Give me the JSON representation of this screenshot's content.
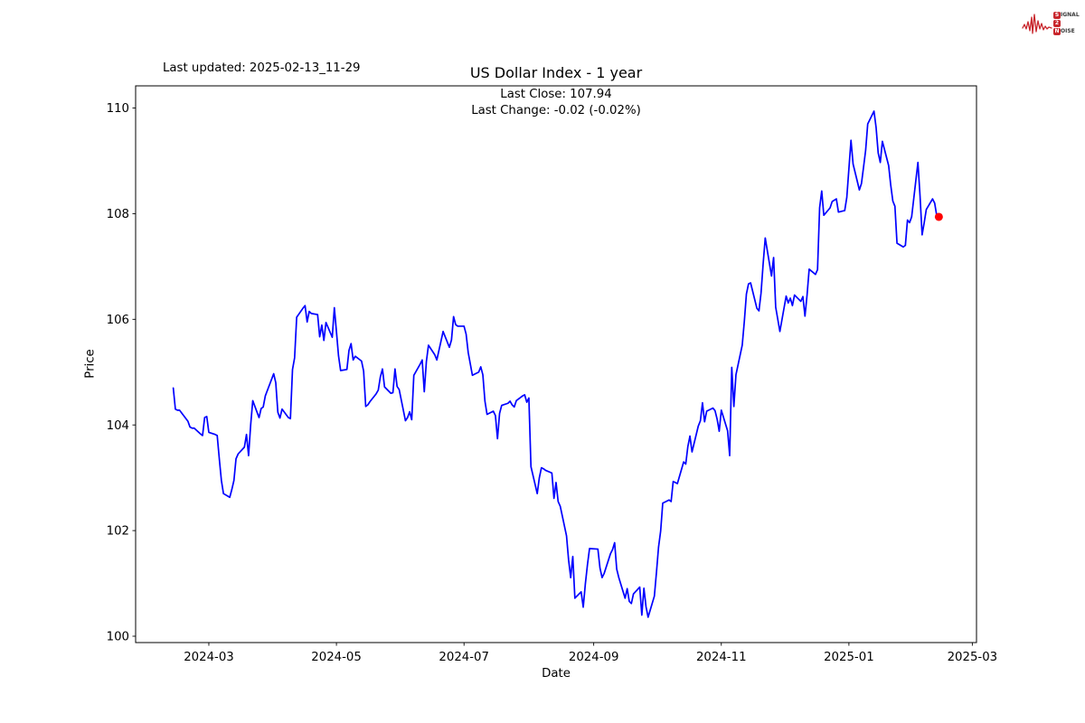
{
  "header": {
    "last_updated": "Last updated: 2025-02-13_11-29",
    "title": "US Dollar Index - 1 year",
    "subtitle_line1": "Last Close: 107.94",
    "subtitle_line2": "Last Change: -0.02 (-0.02%)"
  },
  "logo": {
    "color": "#c8262c",
    "row1_box": "S",
    "row1_rest": "IGNAL",
    "row2_box": "2",
    "row2_rest": "",
    "row3_box": "N",
    "row3_rest": "OISE"
  },
  "chart_data": {
    "type": "line",
    "title": "US Dollar Index - 1 year",
    "xlabel": "Date",
    "ylabel": "Price",
    "line_color": "#0000ff",
    "last_point_color": "#ff0000",
    "axis_color": "#000000",
    "grid": false,
    "ylim": [
      99.88,
      110.42
    ],
    "x_domain": [
      "2024-01-26",
      "2025-03-03"
    ],
    "y_ticks": [
      100,
      102,
      104,
      106,
      108,
      110
    ],
    "x_ticks": [
      {
        "label": "2024-03",
        "date": "2024-03-01"
      },
      {
        "label": "2024-05",
        "date": "2024-05-01"
      },
      {
        "label": "2024-07",
        "date": "2024-07-01"
      },
      {
        "label": "2024-09",
        "date": "2024-09-01"
      },
      {
        "label": "2024-11",
        "date": "2024-11-01"
      },
      {
        "label": "2025-01",
        "date": "2025-01-01"
      },
      {
        "label": "2025-03",
        "date": "2025-03-01"
      }
    ],
    "last_close": 107.94,
    "last_change": "-0.02 (-0.02%)",
    "dates": [
      "2024-02-13",
      "2024-02-14",
      "2024-02-15",
      "2024-02-16",
      "2024-02-20",
      "2024-02-21",
      "2024-02-22",
      "2024-02-23",
      "2024-02-26",
      "2024-02-27",
      "2024-02-28",
      "2024-02-29",
      "2024-03-01",
      "2024-03-04",
      "2024-03-05",
      "2024-03-06",
      "2024-03-07",
      "2024-03-08",
      "2024-03-11",
      "2024-03-12",
      "2024-03-13",
      "2024-03-14",
      "2024-03-15",
      "2024-03-18",
      "2024-03-19",
      "2024-03-20",
      "2024-03-21",
      "2024-03-22",
      "2024-03-25",
      "2024-03-26",
      "2024-03-27",
      "2024-03-28",
      "2024-04-01",
      "2024-04-02",
      "2024-04-03",
      "2024-04-04",
      "2024-04-05",
      "2024-04-08",
      "2024-04-09",
      "2024-04-10",
      "2024-04-11",
      "2024-04-12",
      "2024-04-15",
      "2024-04-16",
      "2024-04-17",
      "2024-04-18",
      "2024-04-19",
      "2024-04-22",
      "2024-04-23",
      "2024-04-24",
      "2024-04-25",
      "2024-04-26",
      "2024-04-29",
      "2024-04-30",
      "2024-05-01",
      "2024-05-02",
      "2024-05-03",
      "2024-05-06",
      "2024-05-07",
      "2024-05-08",
      "2024-05-09",
      "2024-05-10",
      "2024-05-13",
      "2024-05-14",
      "2024-05-15",
      "2024-05-16",
      "2024-05-17",
      "2024-05-20",
      "2024-05-21",
      "2024-05-22",
      "2024-05-23",
      "2024-05-24",
      "2024-05-27",
      "2024-05-28",
      "2024-05-29",
      "2024-05-30",
      "2024-05-31",
      "2024-06-03",
      "2024-06-04",
      "2024-06-05",
      "2024-06-06",
      "2024-06-07",
      "2024-06-10",
      "2024-06-11",
      "2024-06-12",
      "2024-06-13",
      "2024-06-14",
      "2024-06-17",
      "2024-06-18",
      "2024-06-20",
      "2024-06-21",
      "2024-06-24",
      "2024-06-25",
      "2024-06-26",
      "2024-06-27",
      "2024-06-28",
      "2024-07-01",
      "2024-07-02",
      "2024-07-03",
      "2024-07-05",
      "2024-07-08",
      "2024-07-09",
      "2024-07-10",
      "2024-07-11",
      "2024-07-12",
      "2024-07-15",
      "2024-07-16",
      "2024-07-17",
      "2024-07-18",
      "2024-07-19",
      "2024-07-22",
      "2024-07-23",
      "2024-07-24",
      "2024-07-25",
      "2024-07-26",
      "2024-07-29",
      "2024-07-30",
      "2024-07-31",
      "2024-08-01",
      "2024-08-02",
      "2024-08-05",
      "2024-08-06",
      "2024-08-07",
      "2024-08-08",
      "2024-08-09",
      "2024-08-12",
      "2024-08-13",
      "2024-08-14",
      "2024-08-15",
      "2024-08-16",
      "2024-08-19",
      "2024-08-20",
      "2024-08-21",
      "2024-08-22",
      "2024-08-23",
      "2024-08-26",
      "2024-08-27",
      "2024-08-28",
      "2024-08-29",
      "2024-08-30",
      "2024-09-03",
      "2024-09-04",
      "2024-09-05",
      "2024-09-06",
      "2024-09-09",
      "2024-09-10",
      "2024-09-11",
      "2024-09-12",
      "2024-09-13",
      "2024-09-16",
      "2024-09-17",
      "2024-09-18",
      "2024-09-19",
      "2024-09-20",
      "2024-09-23",
      "2024-09-24",
      "2024-09-25",
      "2024-09-26",
      "2024-09-27",
      "2024-09-30",
      "2024-10-01",
      "2024-10-02",
      "2024-10-03",
      "2024-10-04",
      "2024-10-07",
      "2024-10-08",
      "2024-10-09",
      "2024-10-10",
      "2024-10-11",
      "2024-10-14",
      "2024-10-15",
      "2024-10-16",
      "2024-10-17",
      "2024-10-18",
      "2024-10-21",
      "2024-10-22",
      "2024-10-23",
      "2024-10-24",
      "2024-10-25",
      "2024-10-28",
      "2024-10-29",
      "2024-10-30",
      "2024-10-31",
      "2024-11-01",
      "2024-11-04",
      "2024-11-05",
      "2024-11-06",
      "2024-11-07",
      "2024-11-08",
      "2024-11-11",
      "2024-11-12",
      "2024-11-13",
      "2024-11-14",
      "2024-11-15",
      "2024-11-18",
      "2024-11-19",
      "2024-11-20",
      "2024-11-21",
      "2024-11-22",
      "2024-11-25",
      "2024-11-26",
      "2024-11-27",
      "2024-11-29",
      "2024-12-02",
      "2024-12-03",
      "2024-12-04",
      "2024-12-05",
      "2024-12-06",
      "2024-12-09",
      "2024-12-10",
      "2024-12-11",
      "2024-12-12",
      "2024-12-13",
      "2024-12-16",
      "2024-12-17",
      "2024-12-18",
      "2024-12-19",
      "2024-12-20",
      "2024-12-23",
      "2024-12-24",
      "2024-12-26",
      "2024-12-27",
      "2024-12-30",
      "2024-12-31",
      "2025-01-02",
      "2025-01-03",
      "2025-01-06",
      "2025-01-07",
      "2025-01-08",
      "2025-01-09",
      "2025-01-10",
      "2025-01-13",
      "2025-01-14",
      "2025-01-15",
      "2025-01-16",
      "2025-01-17",
      "2025-01-20",
      "2025-01-21",
      "2025-01-22",
      "2025-01-23",
      "2025-01-24",
      "2025-01-27",
      "2025-01-28",
      "2025-01-29",
      "2025-01-30",
      "2025-01-31",
      "2025-02-03",
      "2025-02-04",
      "2025-02-05",
      "2025-02-06",
      "2025-02-07",
      "2025-02-10",
      "2025-02-11",
      "2025-02-12",
      "2025-02-13"
    ],
    "values": [
      104.7,
      104.3,
      104.28,
      104.28,
      104.07,
      103.96,
      103.94,
      103.94,
      103.83,
      103.8,
      104.14,
      104.16,
      103.86,
      103.82,
      103.8,
      103.36,
      102.95,
      102.7,
      102.63,
      102.78,
      102.95,
      103.36,
      103.45,
      103.58,
      103.82,
      103.42,
      104.0,
      104.46,
      104.14,
      104.31,
      104.34,
      104.55,
      104.97,
      104.8,
      104.24,
      104.13,
      104.3,
      104.14,
      104.12,
      105.05,
      105.27,
      106.04,
      106.21,
      106.26,
      105.95,
      106.15,
      106.11,
      106.09,
      105.67,
      105.89,
      105.6,
      105.94,
      105.66,
      106.22,
      105.77,
      105.31,
      105.03,
      105.05,
      105.41,
      105.54,
      105.23,
      105.3,
      105.21,
      105.02,
      104.35,
      104.38,
      104.44,
      104.59,
      104.66,
      104.91,
      105.06,
      104.72,
      104.6,
      104.61,
      105.06,
      104.73,
      104.67,
      104.08,
      104.14,
      104.25,
      104.1,
      104.94,
      105.15,
      105.23,
      104.63,
      105.2,
      105.51,
      105.33,
      105.23,
      105.59,
      105.77,
      105.47,
      105.61,
      106.05,
      105.9,
      105.87,
      105.87,
      105.72,
      105.37,
      104.94,
      105.0,
      105.1,
      104.95,
      104.45,
      104.2,
      104.26,
      104.18,
      103.74,
      104.22,
      104.37,
      104.41,
      104.45,
      104.38,
      104.34,
      104.46,
      104.55,
      104.57,
      104.43,
      104.51,
      103.21,
      102.7,
      103.0,
      103.19,
      103.17,
      103.14,
      103.09,
      102.61,
      102.91,
      102.55,
      102.46,
      101.9,
      101.44,
      101.11,
      101.51,
      100.72,
      100.84,
      100.55,
      100.99,
      101.35,
      101.66,
      101.65,
      101.29,
      101.11,
      101.19,
      101.56,
      101.64,
      101.77,
      101.27,
      101.11,
      100.72,
      100.9,
      100.66,
      100.62,
      100.8,
      100.93,
      100.4,
      100.91,
      100.56,
      100.36,
      100.76,
      101.21,
      101.69,
      101.99,
      102.52,
      102.58,
      102.55,
      102.93,
      102.91,
      102.89,
      103.3,
      103.26,
      103.59,
      103.79,
      103.49,
      103.98,
      104.08,
      104.42,
      104.06,
      104.26,
      104.32,
      104.27,
      104.11,
      103.88,
      104.28,
      103.89,
      103.42,
      105.09,
      104.35,
      104.95,
      105.51,
      105.96,
      106.48,
      106.67,
      106.69,
      106.21,
      106.16,
      106.5,
      107.05,
      107.54,
      106.82,
      107.17,
      106.23,
      105.77,
      106.44,
      106.31,
      106.4,
      106.26,
      106.46,
      106.34,
      106.43,
      106.06,
      106.46,
      106.95,
      106.85,
      106.94,
      108.11,
      108.43,
      107.97,
      108.11,
      108.23,
      108.28,
      108.03,
      108.06,
      108.31,
      109.39,
      108.94,
      108.45,
      108.57,
      108.88,
      109.2,
      109.7,
      109.94,
      109.63,
      109.15,
      108.97,
      109.37,
      108.91,
      108.54,
      108.24,
      108.14,
      107.44,
      107.37,
      107.4,
      107.88,
      107.83,
      107.94,
      108.97,
      108.34,
      107.6,
      107.83,
      108.08,
      108.28,
      108.2,
      107.96,
      107.94
    ]
  }
}
